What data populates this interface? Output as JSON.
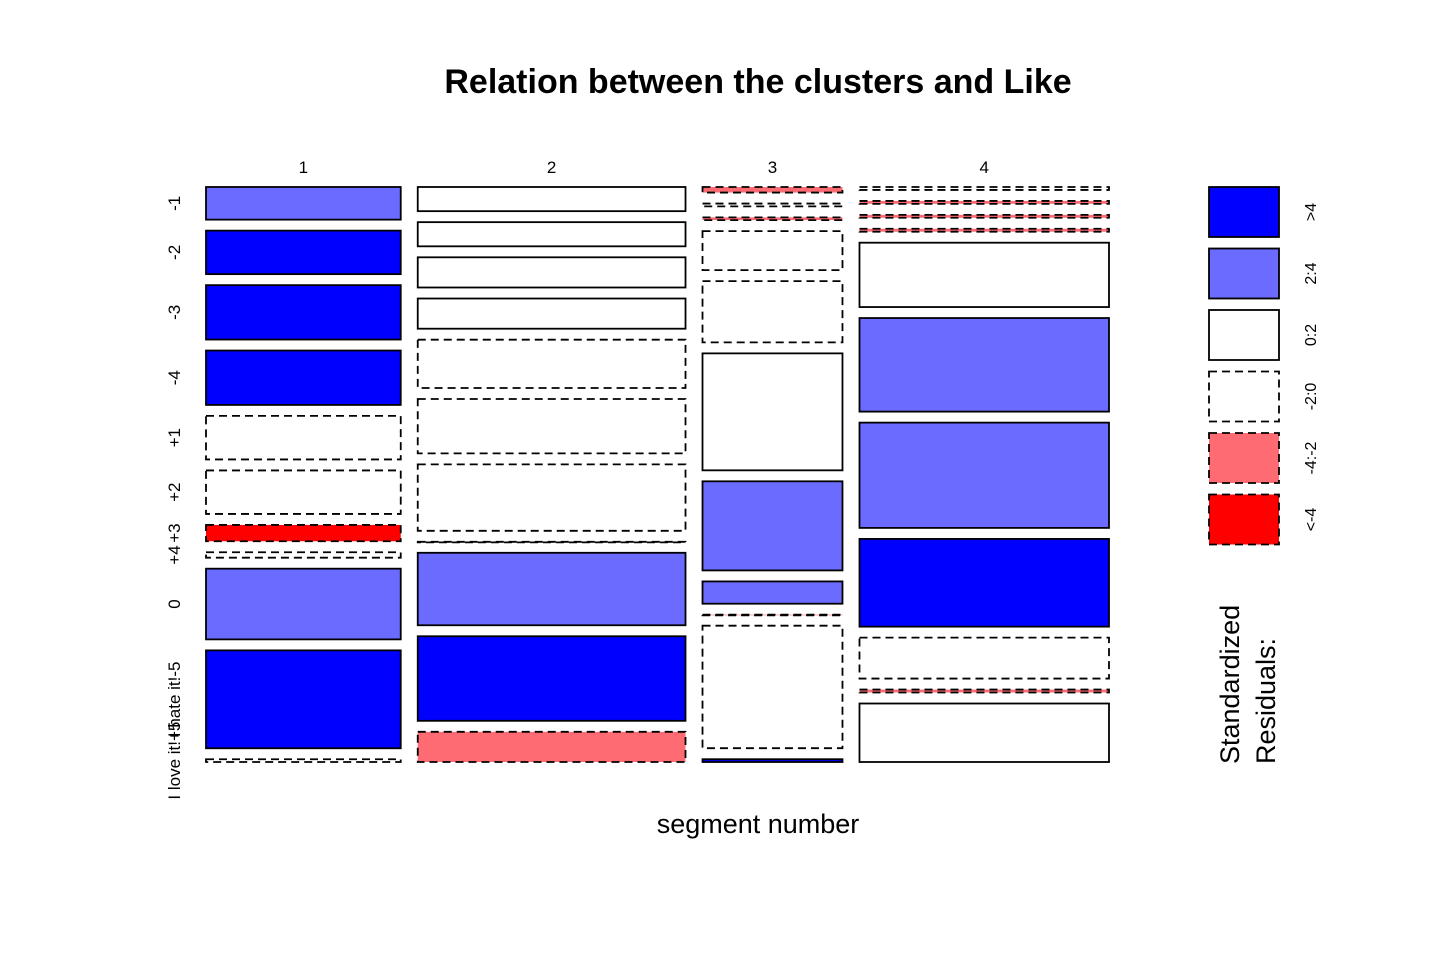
{
  "chart_data": {
    "type": "mosaic",
    "title": "Relation between the clusters and Like",
    "xlabel": "segment number",
    "segments": [
      "1",
      "2",
      "3",
      "4"
    ],
    "segment_share": [
      0.32,
      0.44,
      0.23,
      0.41
    ],
    "like_levels": [
      "-1",
      "-2",
      "-3",
      "-4",
      "+1",
      "+2",
      "+3",
      "+4",
      "0",
      "I hate it!-5",
      "I love it!+5"
    ],
    "cell_share": [
      [
        0.06,
        0.08,
        0.1,
        0.1,
        0.08,
        0.08,
        0.03,
        0.01,
        0.13,
        0.18,
        0.005
      ],
      [
        0.04,
        0.04,
        0.05,
        0.05,
        0.08,
        0.09,
        0.11,
        0.0,
        0.12,
        0.14,
        0.05
      ],
      [
        0.01,
        0.005,
        0.005,
        0.07,
        0.11,
        0.21,
        0.16,
        0.04,
        0.0,
        0.22,
        0.005
      ],
      [
        0.005,
        0.005,
        0.005,
        0.005,
        0.11,
        0.16,
        0.18,
        0.15,
        0.07,
        0.005,
        0.1
      ]
    ],
    "residual_class": [
      [
        "2:4",
        ">4",
        ">4",
        ">4",
        "-2:0",
        "-2:0",
        "<-4",
        "-2:0",
        "2:4",
        ">4",
        "-2:0"
      ],
      [
        "0:2",
        "0:2",
        "0:2",
        "0:2",
        "-2:0",
        "-2:0",
        "-2:0",
        "-4:-2",
        "2:4",
        ">4",
        "-4:-2"
      ],
      [
        "-4:-2",
        "-2:0",
        "-4:-2",
        "-2:0",
        "-2:0",
        "0:2",
        "2:4",
        "2:4",
        "-4:-2",
        "-2:0",
        ">4"
      ],
      [
        "-2:0",
        "-4:-2",
        "-4:-2",
        "-4:-2",
        "0:2",
        "2:4",
        "2:4",
        ">4",
        "-2:0",
        "-4:-2",
        "0:2"
      ]
    ],
    "legend": {
      "title": "Standardized\nResiduals:",
      "position": "right",
      "classes": [
        {
          "label": ">4",
          "color": "#0000ff",
          "dashed": false
        },
        {
          "label": "2:4",
          "color": "#6b6bff",
          "dashed": false
        },
        {
          "label": "0:2",
          "color": "#ffffff",
          "dashed": false
        },
        {
          "label": "-2:0",
          "color": "#ffffff",
          "dashed": true
        },
        {
          "label": "-4:-2",
          "color": "#ff6b73",
          "dashed": true
        },
        {
          "label": "<-4",
          "color": "#ff0000",
          "dashed": true
        }
      ]
    }
  }
}
